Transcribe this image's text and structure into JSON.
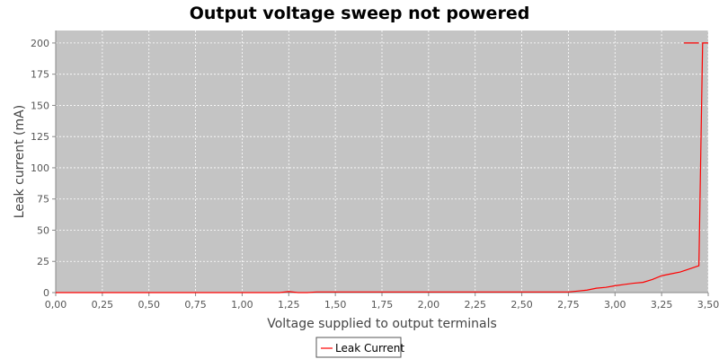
{
  "chart_data": {
    "type": "line",
    "title": "Output voltage sweep not powered",
    "xlabel": "Voltage supplied to output terminals",
    "ylabel": "Leak current (mA)",
    "xlim": [
      0,
      3.5
    ],
    "ylim": [
      0,
      210
    ],
    "x_ticks": [
      "0,00",
      "0,25",
      "0,50",
      "0,75",
      "1,00",
      "1,25",
      "1,50",
      "1,75",
      "2,00",
      "2,25",
      "2,50",
      "2,75",
      "3,00",
      "3,25",
      "3,50"
    ],
    "y_ticks": [
      "0",
      "25",
      "50",
      "75",
      "100",
      "125",
      "150",
      "175",
      "200"
    ],
    "grid": true,
    "legend_position": "bottom-center",
    "plot_background": "#c4c4c4",
    "series": [
      {
        "name": "Leak Current",
        "color": "#ff0000",
        "points": [
          [
            0.0,
            0
          ],
          [
            0.25,
            0
          ],
          [
            0.5,
            0
          ],
          [
            0.75,
            0
          ],
          [
            1.0,
            0
          ],
          [
            1.2,
            0
          ],
          [
            1.25,
            0.8
          ],
          [
            1.3,
            0
          ],
          [
            1.35,
            0
          ],
          [
            1.4,
            0.5
          ],
          [
            1.5,
            0.5
          ],
          [
            1.75,
            0.5
          ],
          [
            2.0,
            0.5
          ],
          [
            2.25,
            0.5
          ],
          [
            2.5,
            0.5
          ],
          [
            2.75,
            0.5
          ],
          [
            2.8,
            1.2
          ],
          [
            2.85,
            2.0
          ],
          [
            2.9,
            3.5
          ],
          [
            2.95,
            4.2
          ],
          [
            3.0,
            5.5
          ],
          [
            3.05,
            6.5
          ],
          [
            3.1,
            7.5
          ],
          [
            3.15,
            8.2
          ],
          [
            3.2,
            10.5
          ],
          [
            3.25,
            13.5
          ],
          [
            3.3,
            15.0
          ],
          [
            3.35,
            16.5
          ],
          [
            3.4,
            19.0
          ],
          [
            3.45,
            21.5
          ],
          [
            3.47,
            200
          ],
          [
            3.5,
            200
          ]
        ],
        "segment": [
          [
            3.37,
            200
          ],
          [
            3.45,
            200
          ]
        ]
      }
    ]
  }
}
